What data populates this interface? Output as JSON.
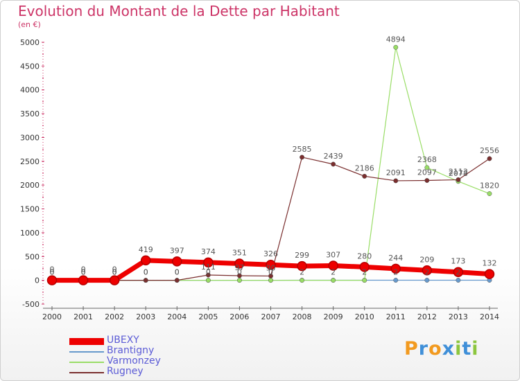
{
  "title": "Evolution du Montant de la Dette par Habitant",
  "subtitle": "(en €)",
  "logo": {
    "letters": [
      "P",
      "r",
      "o",
      "x",
      "i",
      "t",
      "i"
    ],
    "colors": [
      "#f29a1f",
      "#3f8fd8",
      "#f29a1f",
      "#3f8fd8",
      "#8cc63f",
      "#3f8fd8",
      "#8cc63f"
    ]
  },
  "chart_data": {
    "type": "line",
    "x": [
      "2000",
      "2001",
      "2002",
      "2003",
      "2004",
      "2005",
      "2006",
      "2007",
      "2008",
      "2009",
      "2010",
      "2011",
      "2012",
      "2013",
      "2014"
    ],
    "ylim": [
      -500,
      5000
    ],
    "yticks": [
      "5000",
      "4500",
      "4000",
      "3500",
      "3000",
      "2500",
      "2000",
      "1500",
      "1000",
      "500",
      "0",
      "-500"
    ],
    "grid": false,
    "legend_position": "bottom-left",
    "series": [
      {
        "name": "UBEXY",
        "color": "#ee0000",
        "width": 7,
        "values": [
          0,
          0,
          0,
          419,
          397,
          374,
          351,
          326,
          299,
          307,
          280,
          244,
          209,
          173,
          132
        ],
        "labels": [
          "0",
          "0",
          "0",
          "419",
          "397",
          "374",
          "351",
          "326",
          "299",
          "307",
          "280",
          "244",
          "209",
          "173",
          "132"
        ]
      },
      {
        "name": "Brantigny",
        "color": "#6699cc",
        "width": 1.2,
        "values": [
          0,
          0,
          0,
          0,
          0,
          0,
          0,
          0,
          2,
          2,
          2,
          2,
          2,
          2,
          2
        ],
        "labels": [
          "0",
          "0",
          "0",
          "0",
          "0",
          "0",
          "0",
          "0",
          "2",
          "2",
          "2",
          "2",
          "2",
          "2",
          ""
        ]
      },
      {
        "name": "Varmonzey",
        "color": "#99dd66",
        "width": 1.2,
        "values": [
          0,
          0,
          0,
          0,
          0,
          0,
          0,
          0,
          0,
          0,
          0,
          4894,
          2368,
          2078,
          1820
        ],
        "labels": [
          "",
          "",
          "",
          "",
          "",
          "",
          "",
          "",
          "",
          "",
          "",
          "4894",
          "2368",
          "2078",
          "1820"
        ]
      },
      {
        "name": "Rugney",
        "color": "#7a2e2e",
        "width": 1.2,
        "values": [
          0,
          0,
          0,
          0,
          0,
          111,
          97,
          90,
          2585,
          2439,
          2186,
          2091,
          2097,
          2113,
          2556
        ],
        "labels": [
          "0",
          "0",
          "0",
          "0",
          "0",
          "111",
          "97",
          "90",
          "2585",
          "2439",
          "2186",
          "2091",
          "2097",
          "2113",
          "2556"
        ]
      }
    ]
  }
}
